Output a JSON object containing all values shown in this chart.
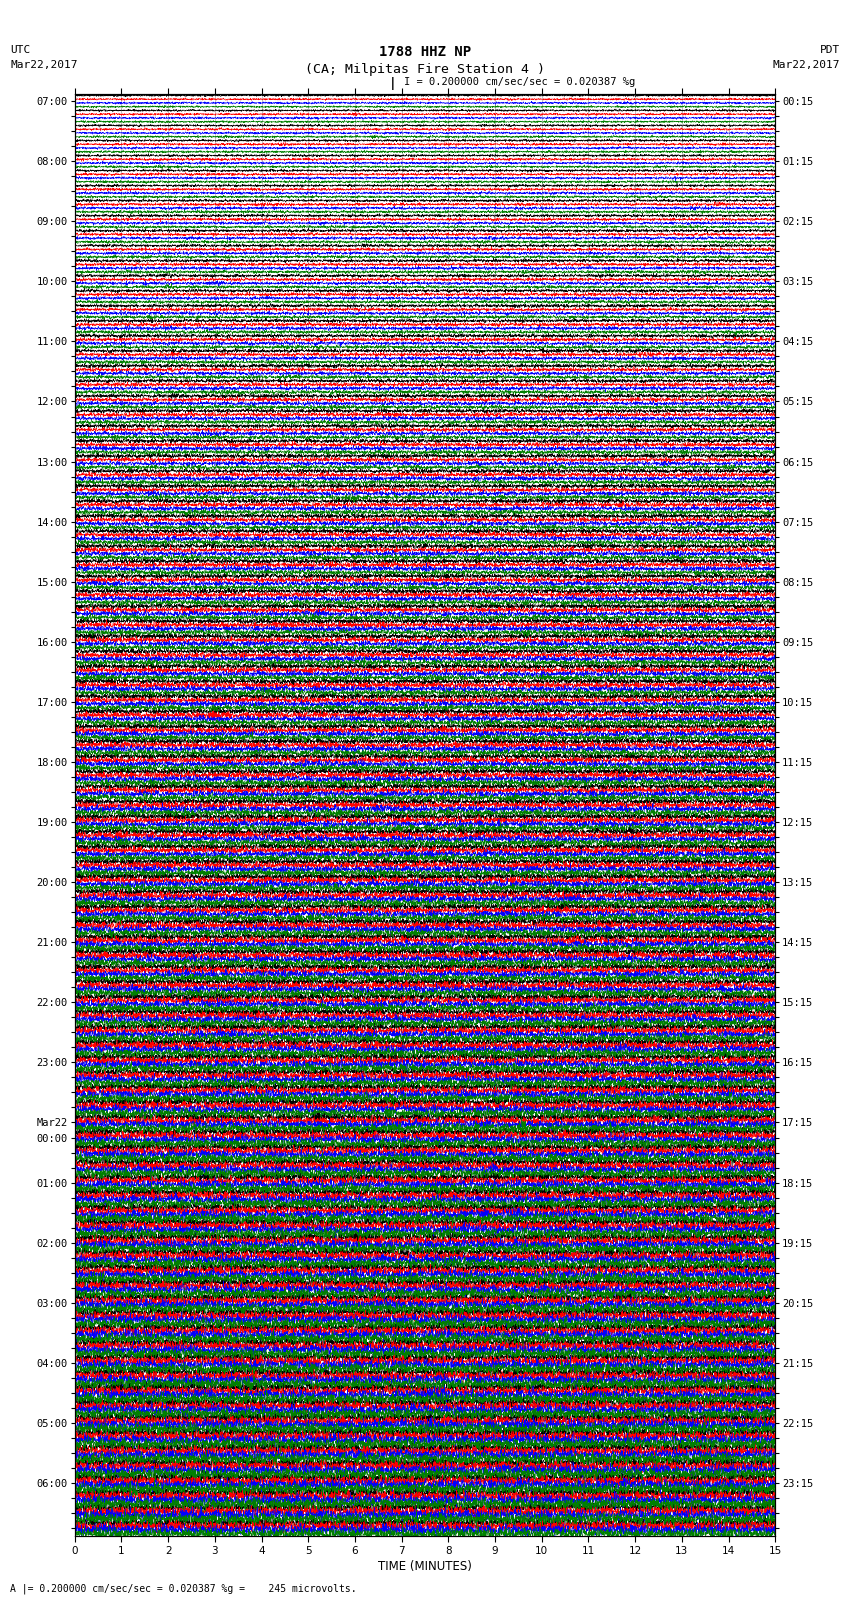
{
  "title_line1": "1788 HHZ NP",
  "title_line2": "(CA; Milpitas Fire Station 4 )",
  "title_line3": "I = 0.200000 cm/sec/sec = 0.020387 %g",
  "left_label_top": "UTC",
  "left_label_date": "Mar22,2017",
  "right_label_top": "PDT",
  "right_label_date": "Mar22,2017",
  "xlabel": "TIME (MINUTES)",
  "bottom_note": "A |= 0.200000 cm/sec/sec = 0.020387 %g =    245 microvolts.",
  "colors": [
    "black",
    "red",
    "blue",
    "green"
  ],
  "num_rows": 96,
  "traces_per_row": 4,
  "minutes_per_row": 15,
  "left_times_utc": [
    "07:00",
    "",
    "",
    "",
    "08:00",
    "",
    "",
    "",
    "09:00",
    "",
    "",
    "",
    "10:00",
    "",
    "",
    "",
    "11:00",
    "",
    "",
    "",
    "12:00",
    "",
    "",
    "",
    "13:00",
    "",
    "",
    "",
    "14:00",
    "",
    "",
    "",
    "15:00",
    "",
    "",
    "",
    "16:00",
    "",
    "",
    "",
    "17:00",
    "",
    "",
    "",
    "18:00",
    "",
    "",
    "",
    "19:00",
    "",
    "",
    "",
    "20:00",
    "",
    "",
    "",
    "21:00",
    "",
    "",
    "",
    "22:00",
    "",
    "",
    "",
    "23:00",
    "",
    "",
    "",
    "Mar22",
    "00:00",
    "",
    "",
    "01:00",
    "",
    "",
    "",
    "02:00",
    "",
    "",
    "",
    "03:00",
    "",
    "",
    "",
    "04:00",
    "",
    "",
    "",
    "05:00",
    "",
    "",
    "",
    "06:00",
    "",
    "",
    ""
  ],
  "right_times_pdt": [
    "00:15",
    "",
    "",
    "",
    "01:15",
    "",
    "",
    "",
    "02:15",
    "",
    "",
    "",
    "03:15",
    "",
    "",
    "",
    "04:15",
    "",
    "",
    "",
    "05:15",
    "",
    "",
    "",
    "06:15",
    "",
    "",
    "",
    "07:15",
    "",
    "",
    "",
    "08:15",
    "",
    "",
    "",
    "09:15",
    "",
    "",
    "",
    "10:15",
    "",
    "",
    "",
    "11:15",
    "",
    "",
    "",
    "12:15",
    "",
    "",
    "",
    "13:15",
    "",
    "",
    "",
    "14:15",
    "",
    "",
    "",
    "15:15",
    "",
    "",
    "",
    "16:15",
    "",
    "",
    "",
    "17:15",
    "",
    "",
    "",
    "18:15",
    "",
    "",
    "",
    "19:15",
    "",
    "",
    "",
    "20:15",
    "",
    "",
    "",
    "21:15",
    "",
    "",
    "",
    "22:15",
    "",
    "",
    "",
    "23:15",
    "",
    "",
    ""
  ],
  "bg_color": "white",
  "plot_bg_color": "white",
  "grid_color": "#aaaaaa",
  "title_fontsize": 10,
  "label_fontsize": 8,
  "tick_fontsize": 7.5,
  "noise_seed": 42,
  "base_amplitude": 0.06,
  "max_amplitude": 0.32,
  "trace_offsets": [
    0.375,
    0.125,
    -0.125,
    -0.375
  ]
}
